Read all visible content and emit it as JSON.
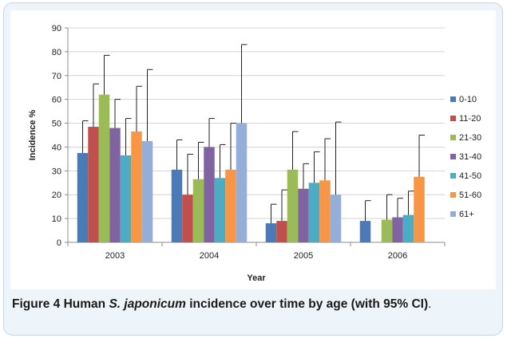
{
  "caption": {
    "label": "Figure 4",
    "text_before": " Human ",
    "species": "S. japonicum",
    "text_after": " incidence over time by age (with 95% CI)",
    "end": "."
  },
  "colors": {
    "frame_bg": "#edf4fa",
    "grid": "#d4d4d4",
    "axis": "#8c8c8c",
    "error_bar": "#222222"
  },
  "chart_data": {
    "type": "bar",
    "title": "",
    "xlabel": "Year",
    "ylabel": "Incidence %",
    "ylim": [
      0,
      90
    ],
    "yticks": [
      0,
      10,
      20,
      30,
      40,
      50,
      60,
      70,
      80,
      90
    ],
    "grid": true,
    "legend_position": "right",
    "error_bars": "95% CI upper bound shown",
    "categories": [
      "2003",
      "2004",
      "2005",
      "2006"
    ],
    "series": [
      {
        "name": "0-10",
        "color": "#4a7ab8",
        "values": [
          37.5,
          30.5,
          8,
          9
        ],
        "upper": [
          51,
          43,
          16,
          17.5
        ]
      },
      {
        "name": "11-20",
        "color": "#c0504d",
        "values": [
          48.5,
          20,
          9,
          null
        ],
        "upper": [
          66.5,
          37,
          22,
          null
        ]
      },
      {
        "name": "21-30",
        "color": "#9bbb59",
        "values": [
          62,
          26.5,
          30.5,
          9.5
        ],
        "upper": [
          78.5,
          42,
          46.5,
          20
        ]
      },
      {
        "name": "31-40",
        "color": "#8064a2",
        "values": [
          48,
          40,
          22.5,
          10.5
        ],
        "upper": [
          60,
          52,
          33,
          18.5
        ]
      },
      {
        "name": "41-50",
        "color": "#4bacc6",
        "values": [
          36.5,
          27,
          25,
          11.5
        ],
        "upper": [
          52,
          41,
          38,
          21.5
        ]
      },
      {
        "name": "51-60",
        "color": "#f79646",
        "values": [
          46.5,
          30.5,
          26,
          27.5
        ],
        "upper": [
          65.5,
          50,
          43.5,
          45
        ]
      },
      {
        "name": "61+",
        "color": "#95aed8",
        "values": [
          42.5,
          50,
          20,
          null
        ],
        "upper": [
          72.5,
          83,
          50.5,
          null
        ]
      }
    ]
  }
}
